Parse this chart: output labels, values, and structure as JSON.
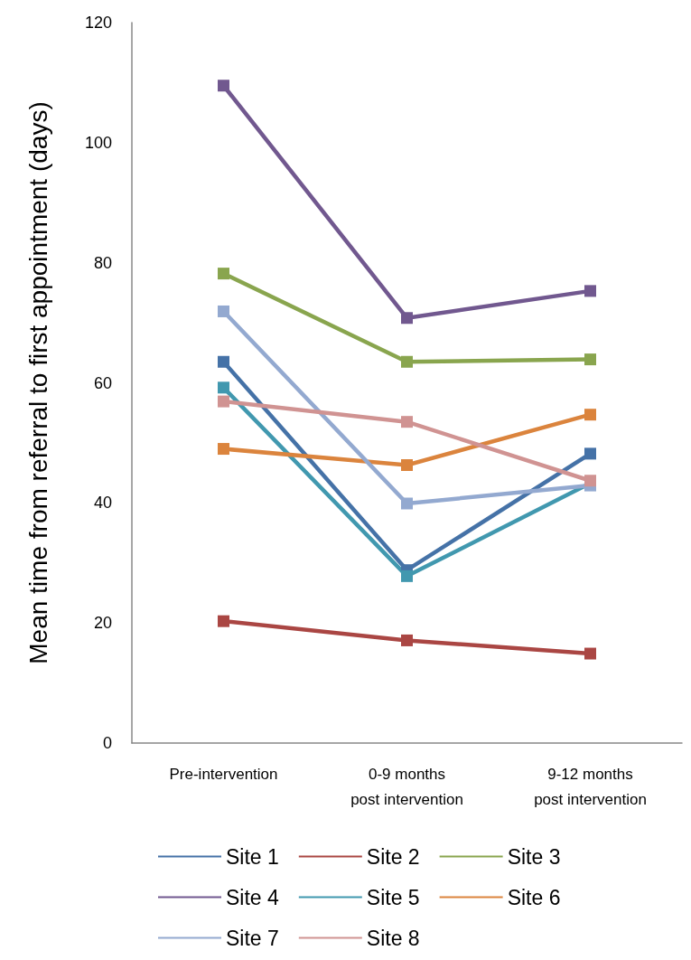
{
  "chart_data": {
    "type": "line",
    "ylabel": "Mean time from referral to first appointment (days)",
    "categories": [
      "Pre-intervention",
      "0-9 months\npost intervention",
      "9-12 months\npost intervention"
    ],
    "series": [
      {
        "name": "Site 1",
        "color": "#4572a7",
        "values": [
          63.5,
          28.8,
          48.2
        ]
      },
      {
        "name": "Site 2",
        "color": "#aa4643",
        "values": [
          20.3,
          17.1,
          14.9
        ]
      },
      {
        "name": "Site 3",
        "color": "#89a54e",
        "values": [
          78.2,
          63.5,
          63.9
        ]
      },
      {
        "name": "Site 4",
        "color": "#71588f",
        "values": [
          109.5,
          70.8,
          75.3
        ]
      },
      {
        "name": "Site 5",
        "color": "#4198af",
        "values": [
          59.2,
          27.8,
          43.3
        ]
      },
      {
        "name": "Site 6",
        "color": "#db843d",
        "values": [
          49,
          46.3,
          54.7
        ]
      },
      {
        "name": "Site 7",
        "color": "#93a9d0",
        "values": [
          71.9,
          39.9,
          42.9
        ]
      },
      {
        "name": "Site 8",
        "color": "#d09392",
        "values": [
          56.9,
          53.5,
          43.7
        ]
      }
    ],
    "ylim": [
      0,
      120
    ],
    "yticks": [
      0,
      20,
      40,
      60,
      80,
      100,
      120
    ],
    "grid": false,
    "legend": "bottom",
    "marker": "square",
    "line_style": "solid"
  }
}
